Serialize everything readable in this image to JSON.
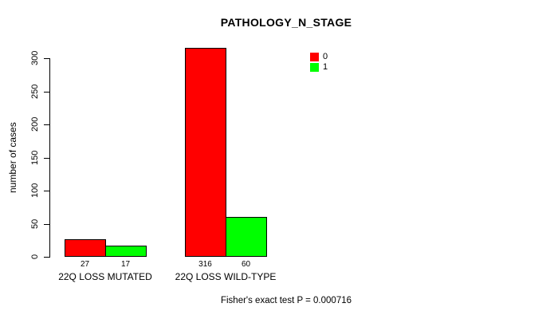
{
  "chart_data": {
    "type": "bar",
    "title": "PATHOLOGY_N_STAGE",
    "ylabel": "number of cases",
    "xlabel": "",
    "footer": "Fisher's exact test P = 0.000716",
    "categories": [
      "22Q LOSS MUTATED",
      "22Q LOSS WILD-TYPE"
    ],
    "series": [
      {
        "name": "0",
        "color": "#ff0000",
        "values": [
          27,
          316
        ]
      },
      {
        "name": "1",
        "color": "#00ff00",
        "values": [
          17,
          60
        ]
      }
    ],
    "bar_value_labels": [
      [
        "27",
        "316"
      ],
      [
        "17",
        "60"
      ]
    ],
    "ylim": [
      0,
      300
    ],
    "yticks": [
      0,
      50,
      100,
      150,
      200,
      250,
      300
    ],
    "grid": false,
    "legend_position": "top-right",
    "axis_color": "#000000",
    "background": "#ffffff"
  }
}
